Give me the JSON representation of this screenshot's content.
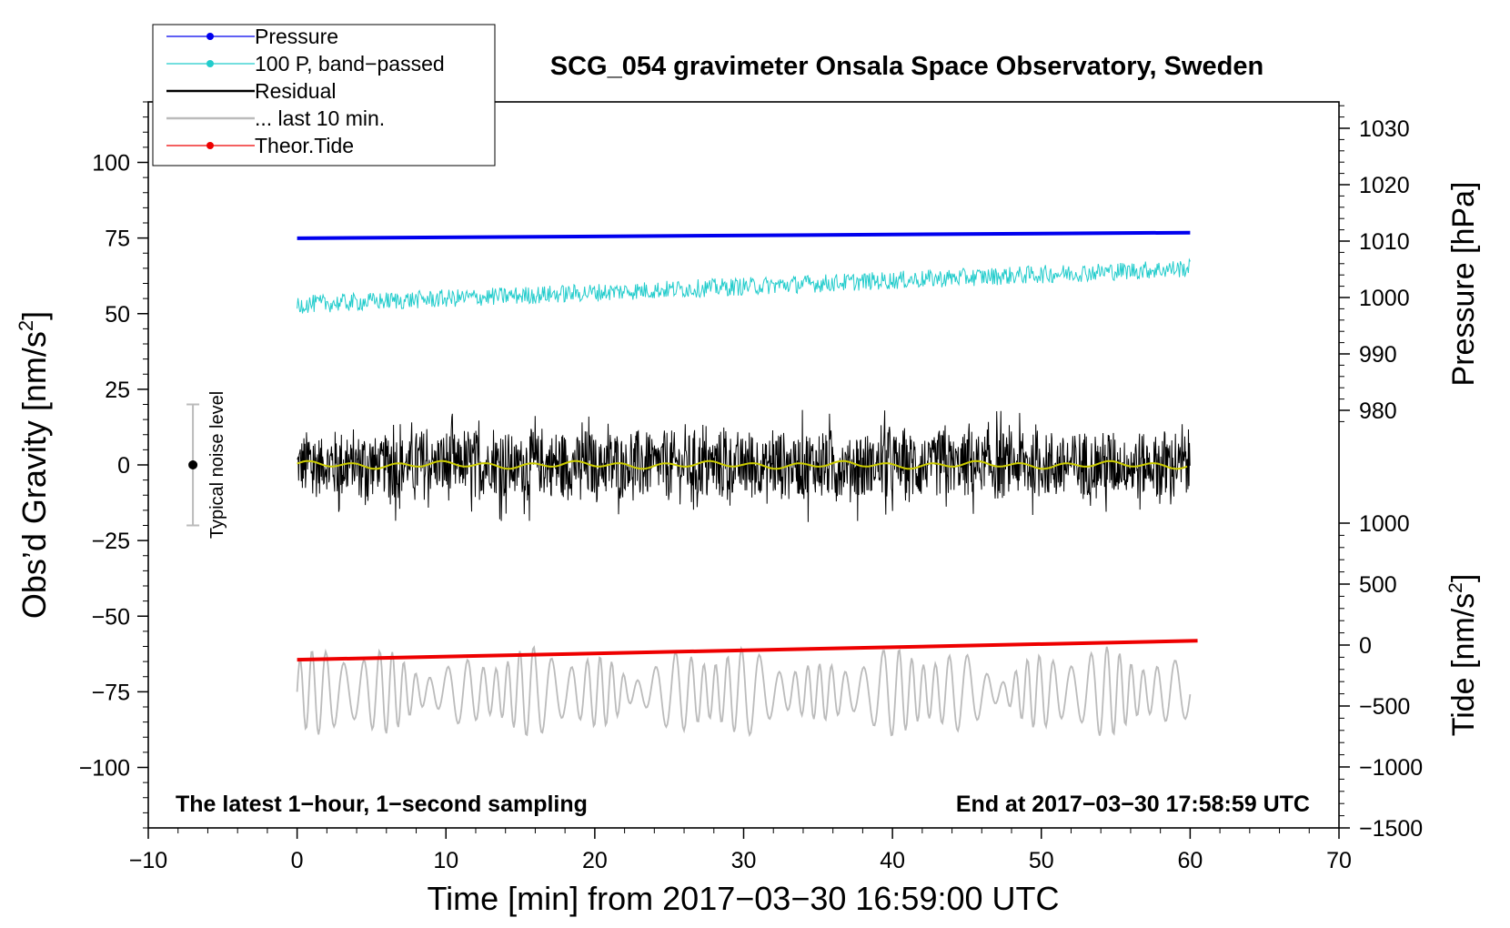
{
  "chart_data": {
    "type": "line",
    "title": "SCG_054 gravimeter Onsala Space Observatory, Sweden",
    "xlabel": "Time [min] from 2017−03−30 16:59:00 UTC",
    "ylabel": "Obs’d Gravity [nm/s",
    "ylabel_sup": "2",
    "ylabel_close": "]",
    "y2label_pressure": "Pressure [hPa]",
    "y2label_tide": "Tide [nm/s",
    "y2label_tide_sup": "2",
    "y2label_tide_close": "]",
    "xlim": [
      -10,
      70
    ],
    "ylim": [
      -120,
      120
    ],
    "x_ticks": [
      -10,
      0,
      10,
      20,
      30,
      40,
      50,
      60,
      70
    ],
    "y_ticks": [
      -100,
      -75,
      -50,
      -25,
      0,
      25,
      50,
      75,
      100
    ],
    "pressure_ticks": [
      980,
      990,
      1000,
      1010,
      1020,
      1030
    ],
    "tide_ticks": [
      -1500,
      -1000,
      -500,
      0,
      500,
      1000
    ],
    "annotation_left": "The latest 1−hour, 1−second sampling",
    "annotation_right": "End at 2017−03−30 17:58:59 UTC",
    "noise_label": "Typical noise level",
    "noise_range": [
      -20,
      20
    ],
    "legend": [
      {
        "label": "Pressure",
        "color": "#0000ee",
        "marker": true
      },
      {
        "label": "100 P, band−passed",
        "color": "#22cccc",
        "marker": true
      },
      {
        "label": "Residual",
        "color": "#000000",
        "marker": false
      },
      {
        "label": "... last 10 min.",
        "color": "#bbbbbb",
        "marker": false
      },
      {
        "label": "Theor.Tide",
        "color": "#ee0000",
        "marker": true
      }
    ],
    "series": [
      {
        "name": "Pressure",
        "axis": "pressure_hPa",
        "color": "#0000ee",
        "x": [
          0,
          60
        ],
        "values": [
          1010.5,
          1011.5
        ]
      },
      {
        "name": "100 P, band-passed",
        "axis": "gravity",
        "color": "#22cccc",
        "x": [
          0,
          60
        ],
        "values": [
          53,
          65
        ],
        "noise_amplitude": 3
      },
      {
        "name": "Residual",
        "axis": "gravity",
        "color": "#000000",
        "x": [
          0,
          60
        ],
        "values": [
          0,
          0
        ],
        "noise_amplitude": 10
      },
      {
        "name": "Residual smoothed",
        "axis": "gravity",
        "color": "#cccc00",
        "x": [
          0,
          60
        ],
        "values": [
          0,
          0
        ]
      },
      {
        "name": "... last 10 min.",
        "axis": "gravity",
        "color": "#bbbbbb",
        "x": [
          0,
          60
        ],
        "values": [
          -75,
          -75
        ],
        "noise_amplitude": 10
      },
      {
        "name": "Theor.Tide",
        "axis": "tide",
        "color": "#ee0000",
        "x": [
          0,
          60.5
        ],
        "values": [
          -120,
          35
        ]
      }
    ]
  }
}
